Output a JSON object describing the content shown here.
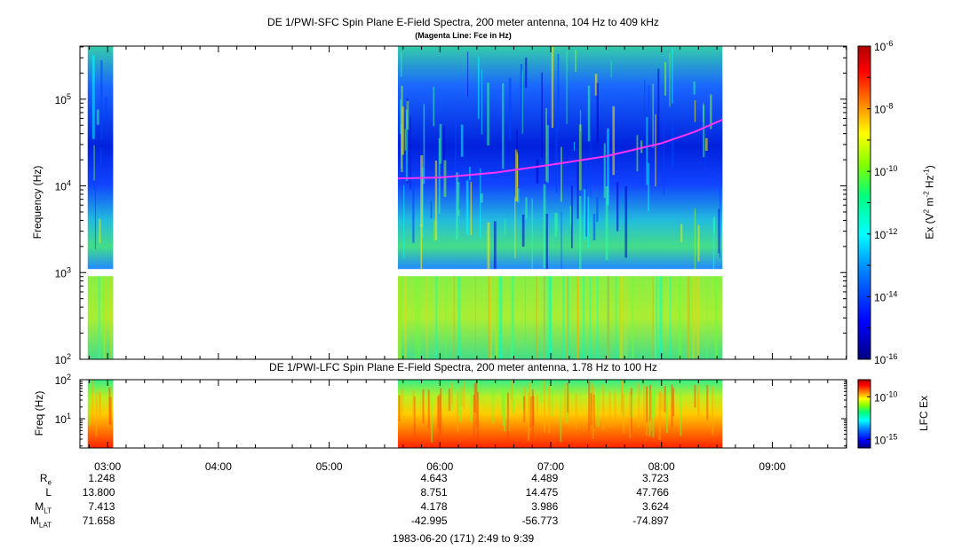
{
  "chart_data": [
    {
      "type": "heatmap",
      "title": "DE 1/PWI-SFC  Spin Plane E-Field Spectra, 200 meter antenna, 104 Hz to 409 kHz",
      "subtitle": "(Magenta Line: Fce in Hz)",
      "ylabel": "Frequency (Hz)",
      "y_scale": "log",
      "ylim": [
        100,
        409000
      ],
      "y_ticks": [
        {
          "value": 100,
          "label": "10",
          "exp": "2"
        },
        {
          "value": 1000,
          "label": "10",
          "exp": "3"
        },
        {
          "value": 10000,
          "label": "10",
          "exp": "4"
        },
        {
          "value": 100000,
          "label": "10",
          "exp": "5"
        }
      ],
      "colorbar": {
        "label": "Ex (V",
        "label_exp1": "2",
        "label_mid": " m",
        "label_exp2": "-2",
        "label_mid2": " Hz",
        "label_exp3": "-1",
        "label_end": ")",
        "scale": "log",
        "range": [
          1e-16,
          1e-06
        ],
        "ticks": [
          {
            "value": 1e-06,
            "label": "10",
            "exp": "-6"
          },
          {
            "value": 1e-08,
            "label": "10",
            "exp": "-8"
          },
          {
            "value": 1e-10,
            "label": "10",
            "exp": "-10"
          },
          {
            "value": 1e-12,
            "label": "10",
            "exp": "-12"
          },
          {
            "value": 1e-14,
            "label": "10",
            "exp": "-14"
          },
          {
            "value": 1e-16,
            "label": "10",
            "exp": "-16"
          }
        ]
      },
      "data_coverage_hours": [
        [
          2.82,
          3.05
        ],
        [
          5.62,
          8.55
        ]
      ],
      "fce_line": {
        "name": "Fce",
        "color": "#ff33ff",
        "x": [
          5.62,
          6.0,
          6.5,
          7.0,
          7.5,
          8.0,
          8.3,
          8.55
        ],
        "y": [
          12200,
          12500,
          14200,
          17500,
          22000,
          31000,
          42000,
          58000
        ]
      }
    },
    {
      "type": "heatmap",
      "title": "DE 1/PWI-LFC  Spin Plane E-Field Spectra, 200 meter antenna, 1.78 Hz to 100 Hz",
      "ylabel": "Freq (Hz)",
      "y_scale": "log",
      "ylim": [
        1.78,
        100
      ],
      "y_ticks": [
        {
          "value": 100,
          "label": "10",
          "exp": "2"
        },
        {
          "value": 10,
          "label": "10",
          "exp": "1"
        }
      ],
      "colorbar": {
        "label": "LFC Ex",
        "scale": "log",
        "range": [
          1e-16,
          1e-08
        ],
        "ticks": [
          {
            "value": 1e-10,
            "label": "10",
            "exp": "-10"
          },
          {
            "value": 1e-15,
            "label": "10",
            "exp": "-15"
          }
        ]
      },
      "data_coverage_hours": [
        [
          2.82,
          3.05
        ],
        [
          5.62,
          8.55
        ]
      ]
    }
  ],
  "time_axis": {
    "xlim_hours": [
      2.75,
      9.67
    ],
    "ticks": [
      {
        "value": 3,
        "label": "03:00"
      },
      {
        "value": 4,
        "label": "04:00"
      },
      {
        "value": 5,
        "label": "05:00"
      },
      {
        "value": 6,
        "label": "06:00"
      },
      {
        "value": 7,
        "label": "07:00"
      },
      {
        "value": 8,
        "label": "08:00"
      },
      {
        "value": 9,
        "label": "09:00"
      }
    ]
  },
  "ephemeris": {
    "rows": [
      {
        "name": "R",
        "sub": "e",
        "values": [
          "1.248",
          "",
          "",
          "",
          "4.643",
          "4.489",
          "3.723"
        ]
      },
      {
        "name": "L",
        "sub": "",
        "values": [
          "13.800",
          "",
          "",
          "",
          "8.751",
          "14.475",
          "47.766"
        ]
      },
      {
        "name": "M",
        "sub": "LT",
        "values": [
          "7.413",
          "",
          "",
          "",
          "4.178",
          "3.986",
          "3.624"
        ]
      },
      {
        "name": "M",
        "sub": "LAT",
        "values": [
          "71.658",
          "",
          "",
          "",
          "-42.995",
          "-56.773",
          "-74.897"
        ]
      }
    ]
  },
  "footer": "1983-06-20 (171) 2:49 to 9:39"
}
